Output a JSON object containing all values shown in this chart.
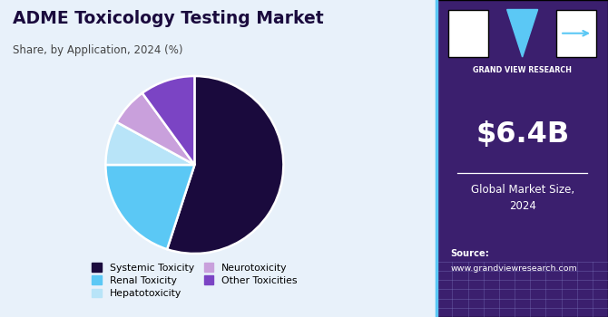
{
  "title": "ADME Toxicology Testing Market",
  "subtitle": "Share, by Application, 2024 (%)",
  "slices": [
    {
      "label": "Systemic Toxicity",
      "value": 55,
      "color": "#1a0a3d"
    },
    {
      "label": "Renal Toxicity",
      "value": 20,
      "color": "#5bc8f5"
    },
    {
      "label": "Hepatotoxicity",
      "value": 8,
      "color": "#b8e4f8"
    },
    {
      "label": "Neurotoxicity",
      "value": 7,
      "color": "#c9a0dc"
    },
    {
      "label": "Other Toxicities",
      "value": 10,
      "color": "#7b44c4"
    }
  ],
  "panel_bg": "#3b1f6e",
  "chart_bg": "#e8f1fa",
  "market_size": "$6.4B",
  "market_label": "Global Market Size,\n2024",
  "source_label": "Source:",
  "source_url": "www.grandviewresearch.com",
  "legend_ncol": 2,
  "title_color": "#1a0a3d",
  "subtitle_color": "#444444"
}
